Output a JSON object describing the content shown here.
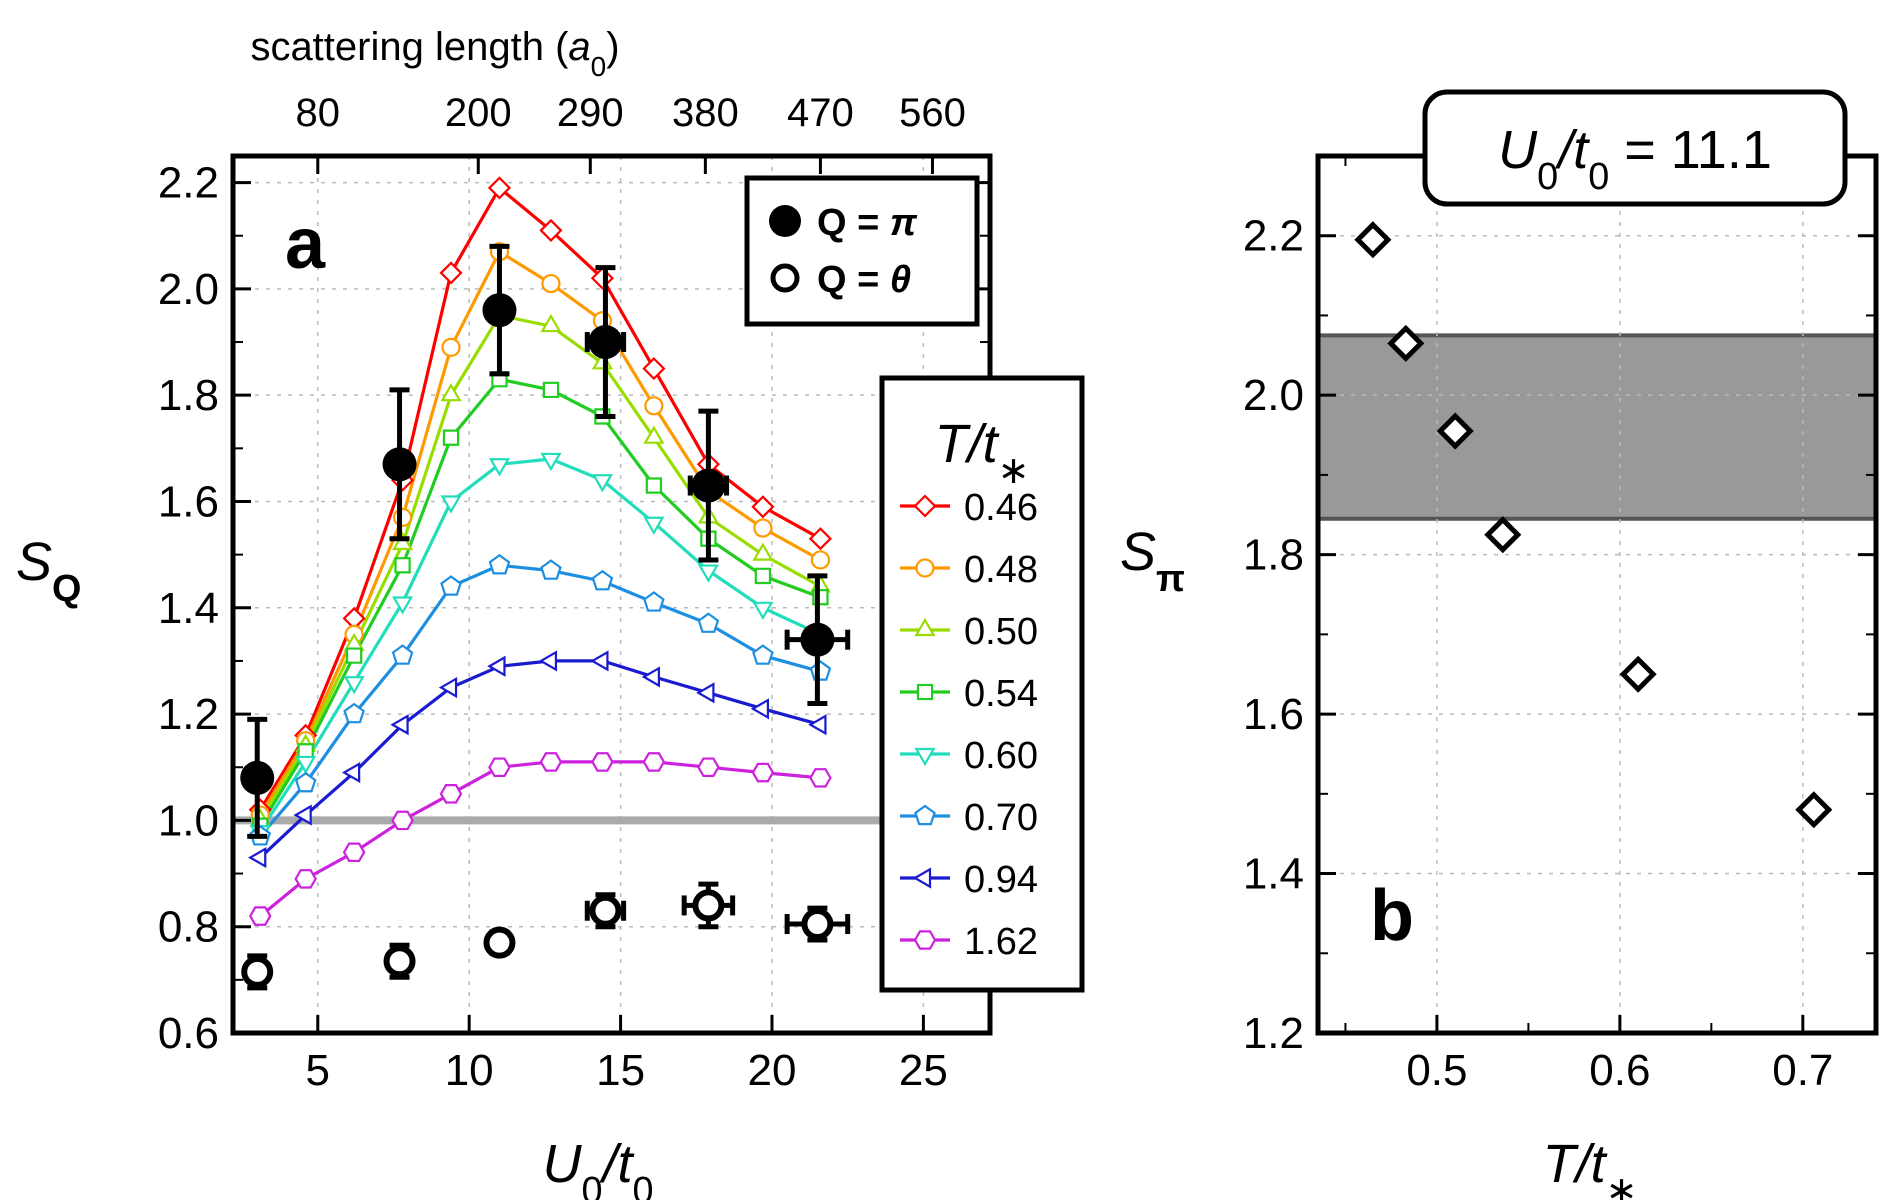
{
  "chart_data": [
    {
      "type": "line",
      "panel_letter": "a",
      "xlabel": "U0/t0",
      "ylabel": "SQ",
      "top_axis_label": "scattering length (a0)",
      "xlim": [
        2.2,
        27.2
      ],
      "ylim": [
        0.6,
        2.25
      ],
      "xticks": [
        5,
        10,
        15,
        20,
        25
      ],
      "xtick_labels": [
        "5",
        "10",
        "15",
        "20",
        "25"
      ],
      "yticks": [
        0.6,
        0.8,
        1.0,
        1.2,
        1.4,
        1.6,
        1.8,
        2.0,
        2.2
      ],
      "ytick_labels": [
        "0.6",
        "0.8",
        "1.0",
        "1.2",
        "1.4",
        "1.6",
        "1.8",
        "2.0",
        "2.2"
      ],
      "top_ticks": [
        {
          "u": 5.0,
          "label": "80"
        },
        {
          "u": 10.3,
          "label": "200"
        },
        {
          "u": 14.0,
          "label": "290"
        },
        {
          "u": 17.8,
          "label": "380"
        },
        {
          "u": 21.6,
          "label": "470"
        },
        {
          "u": 25.3,
          "label": "560"
        }
      ],
      "grid": true,
      "reference_line": 1.0,
      "legend_T_title": "T/t*",
      "series": [
        {
          "name": "0.46",
          "color": "#ff0000",
          "marker": "diamond",
          "x": [
            3.1,
            4.6,
            6.2,
            7.8,
            9.4,
            11.0,
            12.7,
            14.4,
            16.1,
            17.9,
            19.7,
            21.6
          ],
          "y": [
            1.02,
            1.16,
            1.38,
            1.64,
            2.03,
            2.19,
            2.11,
            2.02,
            1.85,
            1.67,
            1.59,
            1.53
          ]
        },
        {
          "name": "0.48",
          "color": "#ff9900",
          "marker": "circle",
          "x": [
            3.1,
            4.6,
            6.2,
            7.8,
            9.4,
            11.0,
            12.7,
            14.4,
            16.1,
            17.9,
            19.7,
            21.6
          ],
          "y": [
            1.01,
            1.15,
            1.35,
            1.57,
            1.89,
            2.07,
            2.01,
            1.94,
            1.78,
            1.62,
            1.55,
            1.49
          ]
        },
        {
          "name": "0.50",
          "color": "#99dd00",
          "marker": "triangle-up",
          "x": [
            3.1,
            4.6,
            6.2,
            7.8,
            9.4,
            11.0,
            12.7,
            14.4,
            16.1,
            17.9,
            19.7,
            21.6
          ],
          "y": [
            1.0,
            1.14,
            1.33,
            1.52,
            1.8,
            1.95,
            1.93,
            1.86,
            1.72,
            1.57,
            1.5,
            1.44
          ]
        },
        {
          "name": "0.54",
          "color": "#22cc22",
          "marker": "square",
          "x": [
            3.1,
            4.6,
            6.2,
            7.8,
            9.4,
            11.0,
            12.7,
            14.4,
            16.1,
            17.9,
            19.7,
            21.6
          ],
          "y": [
            0.99,
            1.13,
            1.31,
            1.48,
            1.72,
            1.83,
            1.81,
            1.76,
            1.63,
            1.53,
            1.46,
            1.42
          ]
        },
        {
          "name": "0.60",
          "color": "#22ddbb",
          "marker": "triangle-down",
          "x": [
            3.1,
            4.6,
            6.2,
            7.8,
            9.4,
            11.0,
            12.7,
            14.4,
            16.1,
            17.9,
            19.7,
            21.6
          ],
          "y": [
            0.98,
            1.11,
            1.26,
            1.41,
            1.6,
            1.67,
            1.68,
            1.64,
            1.56,
            1.47,
            1.4,
            1.35
          ]
        },
        {
          "name": "0.70",
          "color": "#1e8fe0",
          "marker": "pentagon",
          "x": [
            3.1,
            4.6,
            6.2,
            7.8,
            9.4,
            11.0,
            12.7,
            14.4,
            16.1,
            17.9,
            19.7,
            21.6
          ],
          "y": [
            0.97,
            1.07,
            1.2,
            1.31,
            1.44,
            1.48,
            1.47,
            1.45,
            1.41,
            1.37,
            1.31,
            1.28
          ]
        },
        {
          "name": "0.94",
          "color": "#1a1ad0",
          "marker": "triangle-left",
          "x": [
            3.1,
            4.6,
            6.2,
            7.8,
            9.4,
            11.0,
            12.7,
            14.4,
            16.1,
            17.9,
            19.7,
            21.6
          ],
          "y": [
            0.93,
            1.01,
            1.09,
            1.18,
            1.25,
            1.29,
            1.3,
            1.3,
            1.27,
            1.24,
            1.21,
            1.18
          ]
        },
        {
          "name": "1.62",
          "color": "#cc22dd",
          "marker": "hexagon",
          "x": [
            3.1,
            4.6,
            6.2,
            7.8,
            9.4,
            11.0,
            12.7,
            14.4,
            16.1,
            17.9,
            19.7,
            21.6
          ],
          "y": [
            0.82,
            0.89,
            0.94,
            1.0,
            1.05,
            1.1,
            1.11,
            1.11,
            1.11,
            1.1,
            1.09,
            1.08
          ]
        }
      ],
      "experiment": [
        {
          "legend_label": "Q = π",
          "filled": true,
          "points": [
            {
              "x": 3.0,
              "y": 1.08,
              "xerr": 0.0,
              "yerr": 0.11
            },
            {
              "x": 7.7,
              "y": 1.67,
              "xerr": 0.0,
              "yerr": 0.14
            },
            {
              "x": 11.0,
              "y": 1.96,
              "xerr": 0.0,
              "yerr": 0.12
            },
            {
              "x": 14.5,
              "y": 1.9,
              "xerr": 0.6,
              "yerr": 0.14
            },
            {
              "x": 17.9,
              "y": 1.63,
              "xerr": 0.6,
              "yerr": 0.14
            },
            {
              "x": 21.5,
              "y": 1.34,
              "xerr": 1.0,
              "yerr": 0.12
            }
          ]
        },
        {
          "legend_label": "Q = θ",
          "filled": false,
          "points": [
            {
              "x": 3.0,
              "y": 0.715,
              "xerr": 0.0,
              "yerr": 0.03
            },
            {
              "x": 7.7,
              "y": 0.735,
              "xerr": 0.0,
              "yerr": 0.03
            },
            {
              "x": 11.0,
              "y": 0.77,
              "xerr": 0.3,
              "yerr": 0.02
            },
            {
              "x": 14.5,
              "y": 0.83,
              "xerr": 0.6,
              "yerr": 0.03
            },
            {
              "x": 17.9,
              "y": 0.84,
              "xerr": 0.8,
              "yerr": 0.04
            },
            {
              "x": 21.5,
              "y": 0.805,
              "xerr": 1.0,
              "yerr": 0.03
            }
          ]
        }
      ]
    },
    {
      "type": "scatter",
      "panel_letter": "b",
      "xlabel": "T/t*",
      "ylabel": "Sπ",
      "box_label": "U0/t0 = 11.1",
      "xlim": [
        0.435,
        0.74
      ],
      "ylim": [
        1.2,
        2.3
      ],
      "xticks": [
        0.5,
        0.6,
        0.7
      ],
      "xtick_labels": [
        "0.5",
        "0.6",
        "0.7"
      ],
      "yticks": [
        1.2,
        1.4,
        1.6,
        1.8,
        2.0,
        2.2
      ],
      "ytick_labels": [
        "1.2",
        "1.4",
        "1.6",
        "1.8",
        "2.0",
        "2.2"
      ],
      "grid": true,
      "band": [
        1.845,
        2.075
      ],
      "x": [
        0.465,
        0.483,
        0.51,
        0.536,
        0.61,
        0.706
      ],
      "y": [
        2.195,
        2.065,
        1.955,
        1.825,
        1.65,
        1.48
      ]
    }
  ]
}
